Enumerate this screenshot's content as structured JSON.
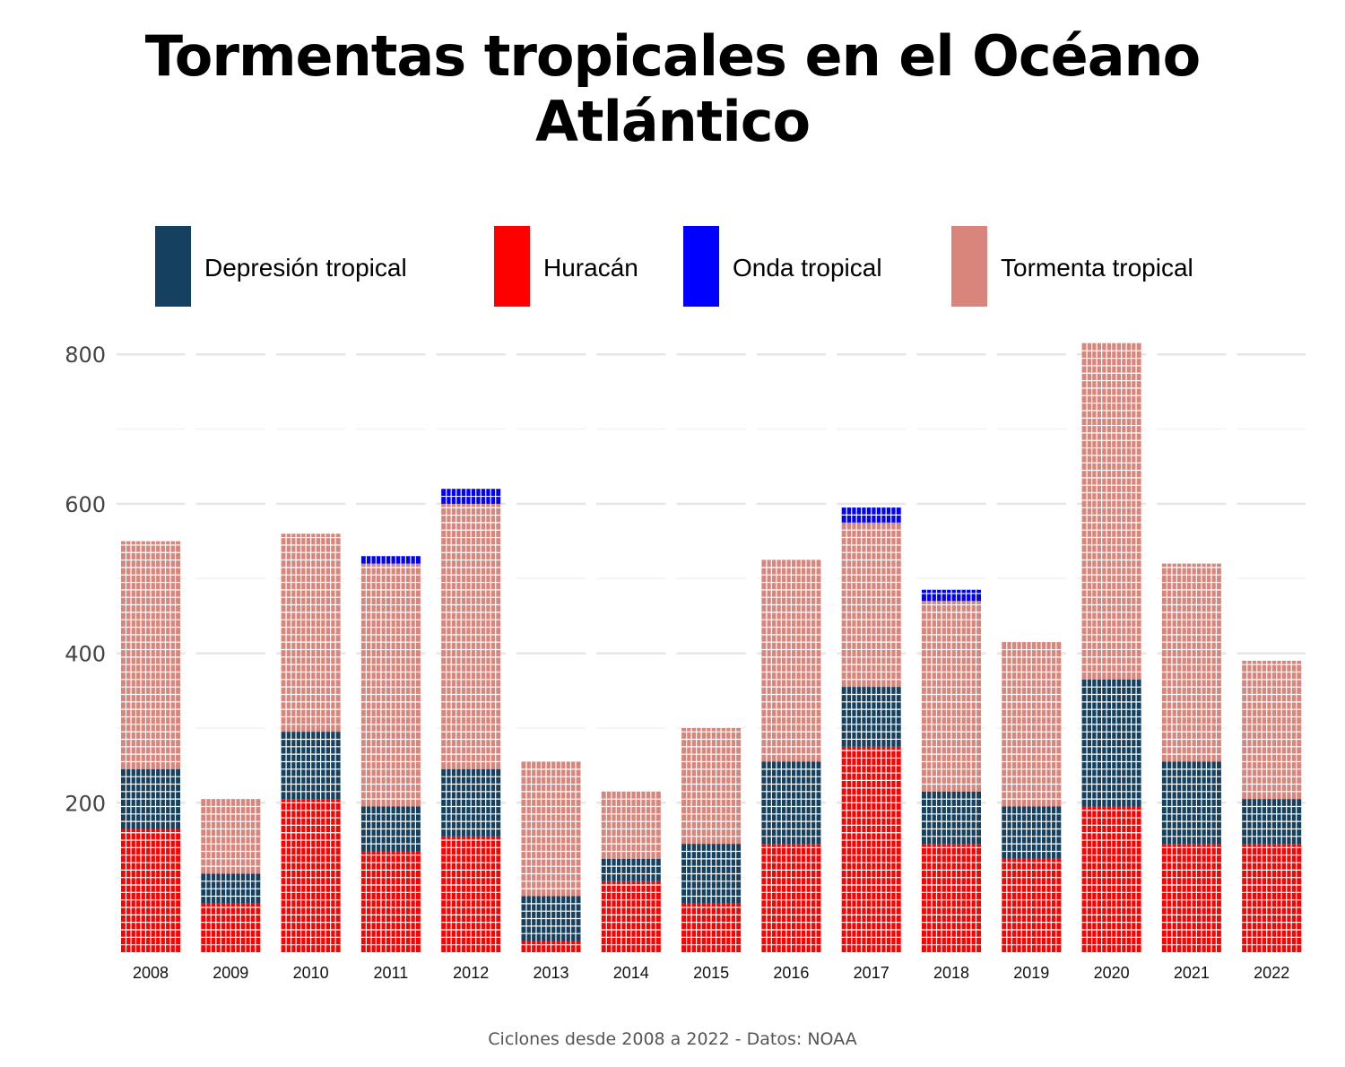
{
  "title": "Tormentas tropicales en el Océano Atlántico",
  "caption": "Ciclones desde 2008 a 2022 - Datos: NOAA",
  "chart_data": {
    "type": "bar",
    "subtype": "stacked-waffle",
    "categories": [
      "2008",
      "2009",
      "2010",
      "2011",
      "2012",
      "2013",
      "2014",
      "2015",
      "2016",
      "2017",
      "2018",
      "2019",
      "2020",
      "2021",
      "2022"
    ],
    "series": [
      {
        "name": "Huracán",
        "color": "#ff0000",
        "values": [
          165,
          65,
          205,
          135,
          155,
          15,
          95,
          65,
          145,
          275,
          145,
          125,
          195,
          145,
          145
        ]
      },
      {
        "name": "Depresión tropical",
        "color": "#16405f",
        "values": [
          80,
          40,
          90,
          60,
          90,
          60,
          30,
          80,
          110,
          80,
          70,
          70,
          170,
          110,
          60
        ]
      },
      {
        "name": "Tormenta tropical",
        "color": "#d9857b",
        "values": [
          305,
          100,
          265,
          325,
          355,
          180,
          90,
          155,
          270,
          220,
          255,
          220,
          450,
          265,
          185
        ]
      },
      {
        "name": "Onda tropical",
        "color": "#0000ff",
        "values": [
          0,
          0,
          0,
          10,
          20,
          0,
          0,
          0,
          0,
          20,
          15,
          0,
          0,
          0,
          0
        ]
      }
    ],
    "legend_order": [
      "Depresión tropical",
      "Huracán",
      "Onda tropical",
      "Tormenta tropical"
    ],
    "ylim": [
      0,
      840
    ],
    "yticks": [
      200,
      400,
      600,
      800
    ],
    "grid": true,
    "legend_position": "top",
    "xlabel": "",
    "ylabel": ""
  }
}
